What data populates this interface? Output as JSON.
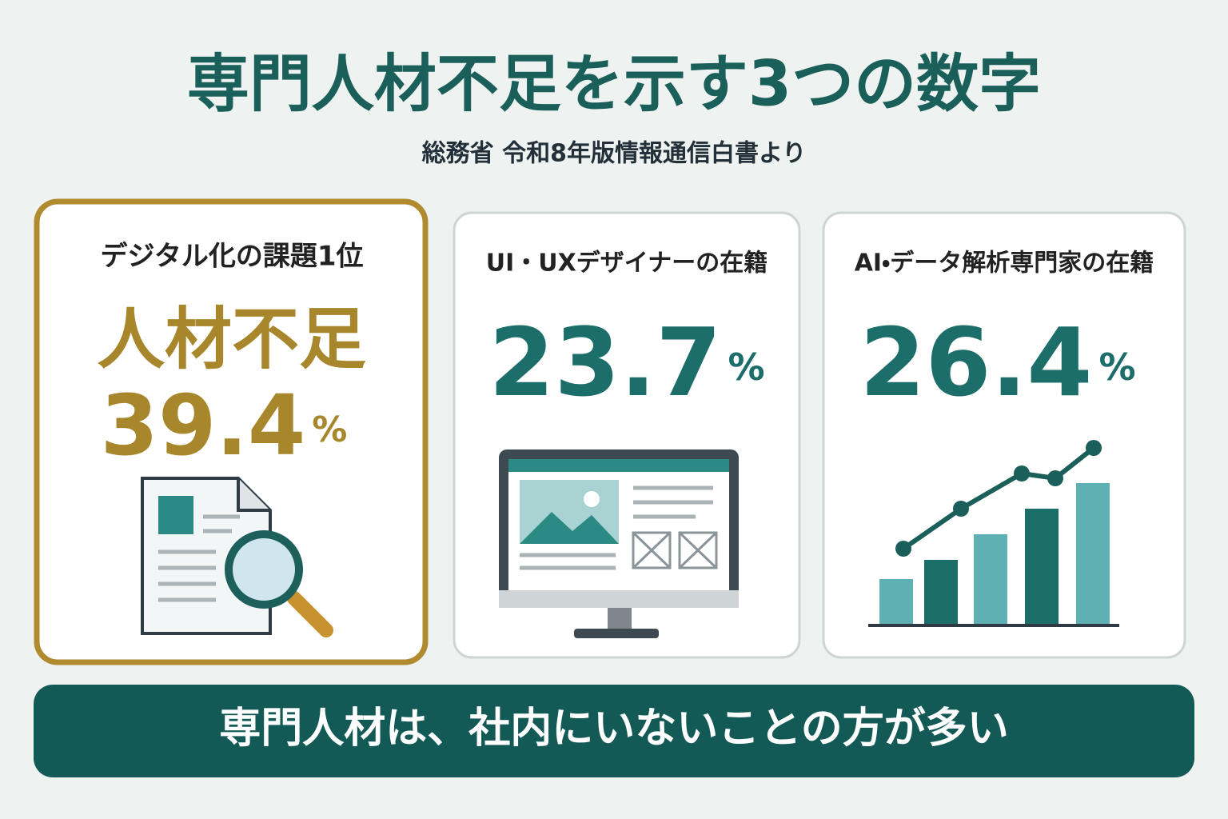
{
  "header": {
    "title": "専門人材不足を示す3つの数字",
    "subtitle": "総務省 令和8年版情報通信白書より"
  },
  "cards": [
    {
      "label": "デジタル化の課題1位",
      "headline": "人材不足",
      "value": 39.4,
      "unit": "%"
    },
    {
      "label": "UI・UXデザイナーの在籍",
      "value": 23.7,
      "unit": "%"
    },
    {
      "label": "AI・データ解析専門家の在籍",
      "value": 26.4,
      "unit": "%"
    }
  ],
  "footer": {
    "text": "専門人材は、社内にいないことの方が多い"
  }
}
